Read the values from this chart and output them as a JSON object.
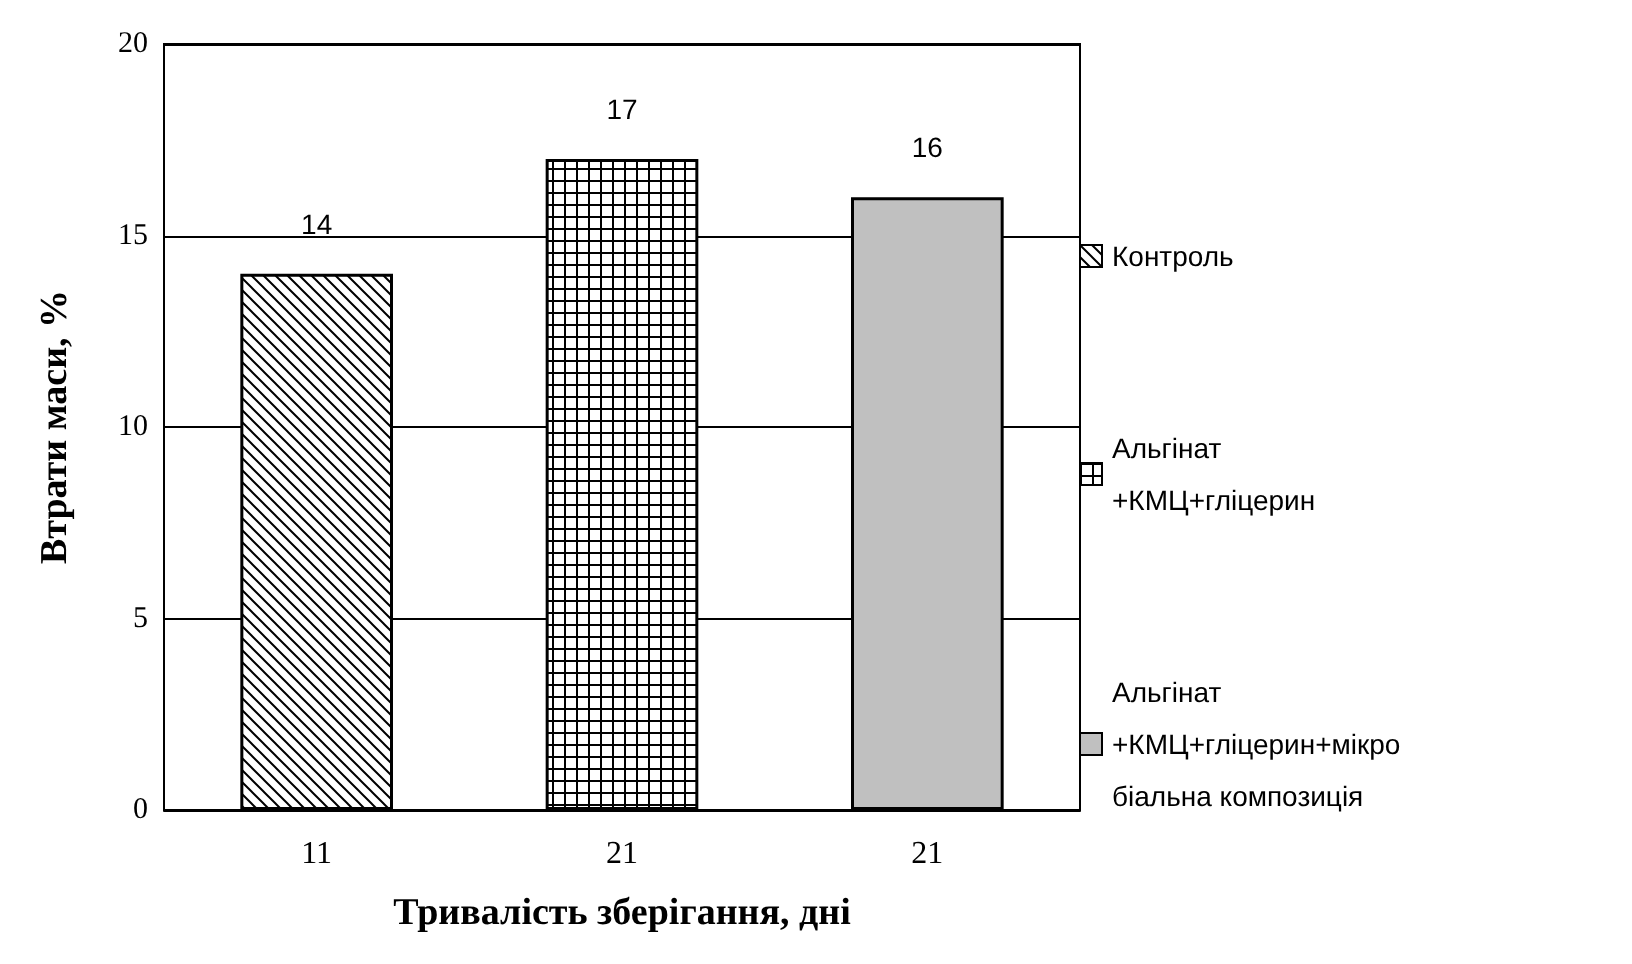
{
  "chart_data": {
    "type": "bar",
    "xlabel": "Тривалість зберігання, дні",
    "ylabel": "Втрати маси, %",
    "categories": [
      "11",
      "21",
      "21"
    ],
    "series": [
      {
        "name": "Контроль",
        "color": "#000000",
        "values": [
          14,
          null,
          null
        ]
      },
      {
        "name": "Альгінат +КМЦ+гліцерин",
        "color": "#000000",
        "values": [
          null,
          17,
          null
        ]
      },
      {
        "name": "Альгінат +КМЦ+гліцерин+мікробіальна композиція",
        "color": "#c0c0c0",
        "values": [
          null,
          null,
          16
        ]
      }
    ],
    "ylim": [
      0,
      20
    ],
    "yticks": [
      0,
      5,
      10,
      15,
      20
    ],
    "grid": "y",
    "legend": "right",
    "data_labels": true
  }
}
